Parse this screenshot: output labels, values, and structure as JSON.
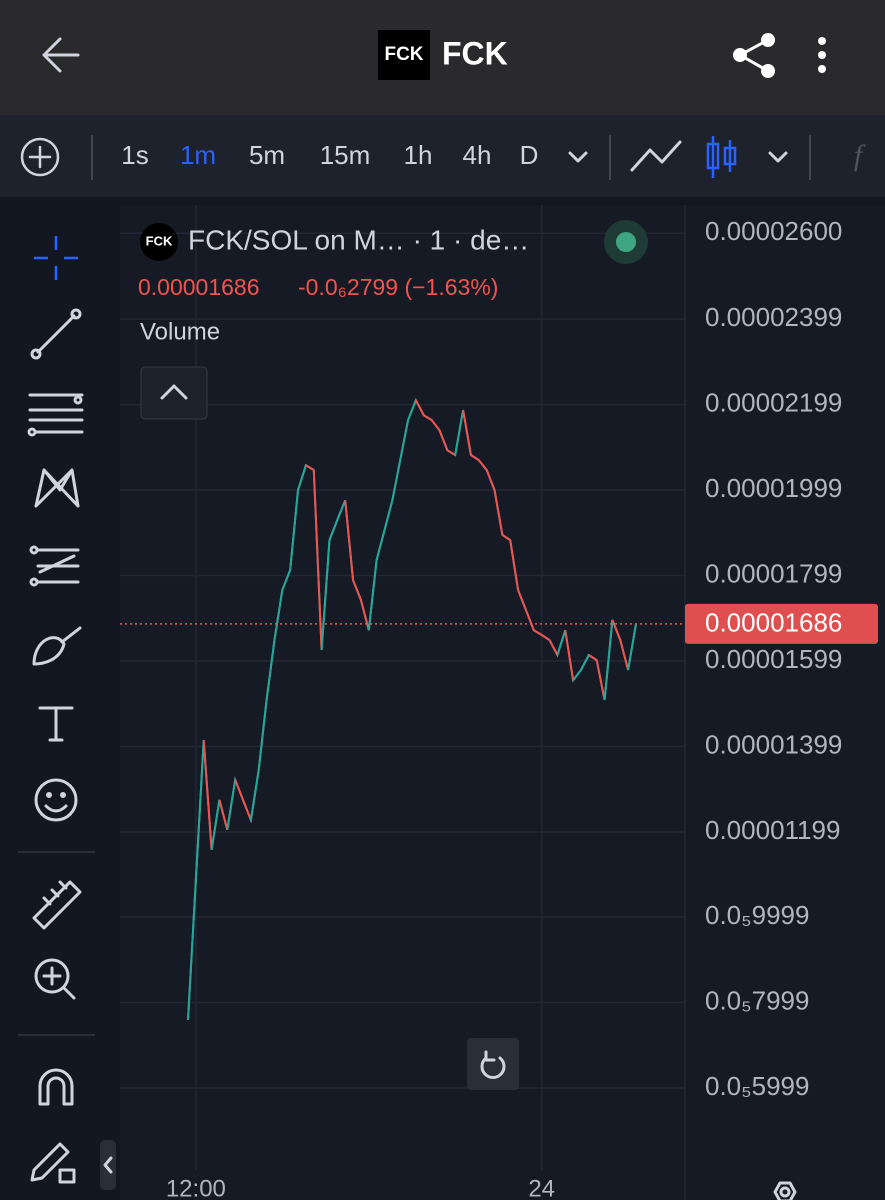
{
  "header": {
    "logo": "FCK",
    "title": "FCK"
  },
  "toolbar": {
    "timeframes": [
      "1s",
      "1m",
      "5m",
      "15m",
      "1h",
      "4h",
      "D"
    ],
    "active": 1
  },
  "legend": {
    "logo": "FCK",
    "title": "FCK/SOL on M… · 1 · de…",
    "price": "0.00001686",
    "change": "-0.0₆2799 (−1.63%)",
    "indicator": "Volume"
  },
  "chart_data": {
    "type": "line",
    "color": "#4fa39a",
    "up_color": "#26a69a",
    "down_color": "#ef5350",
    "categories": [
      null,
      "12:00",
      null,
      null,
      null,
      null,
      null,
      null,
      null,
      null,
      null,
      null,
      null,
      null,
      null,
      null,
      null,
      null,
      null,
      null,
      null,
      null,
      null,
      null,
      null,
      null,
      null,
      null,
      null,
      null,
      null,
      null,
      null,
      null,
      null,
      null,
      null,
      null,
      null,
      null,
      null,
      null,
      null,
      null,
      null,
      "24",
      null,
      null,
      null,
      null,
      null,
      null,
      null,
      null,
      null,
      null,
      null,
      null
    ],
    "values": [
      7.59e-06,
      1.087e-05,
      1.414e-05,
      1.157e-05,
      1.274e-05,
      1.204e-05,
      1.321e-05,
      1.274e-05,
      1.227e-05,
      1.344e-05,
      1.508e-05,
      1.648e-05,
      1.765e-05,
      1.812e-05,
      1.999e-05,
      2.057e-05,
      2.046e-05,
      1.625e-05,
      1.882e-05,
      1.929e-05,
      1.975e-05,
      1.788e-05,
      1.742e-05,
      1.671e-05,
      1.835e-05,
      1.905e-05,
      1.975e-05,
      2.069e-05,
      2.163e-05,
      2.209e-05,
      2.174e-05,
      2.163e-05,
      2.139e-05,
      2.092e-05,
      2.081e-05,
      2.186e-05,
      2.081e-05,
      2.069e-05,
      2.046e-05,
      1.999e-05,
      1.894e-05,
      1.882e-05,
      1.765e-05,
      1.718e-05,
      1.671e-05,
      1.66e-05,
      1.648e-05,
      1.613e-05,
      1.671e-05,
      1.554e-05,
      1.578e-05,
      1.613e-05,
      1.601e-05,
      1.508e-05,
      1.695e-05,
      1.648e-05,
      1.578e-05,
      1.686e-05
    ],
    "last_price": {
      "value": 1.686e-05,
      "label": "0.00001686"
    },
    "ylim": [
      4.08e-06,
      2.666e-05
    ],
    "yticks": [
      {
        "value": 2.6e-05,
        "label": "0.00002600"
      },
      {
        "value": 2.399e-05,
        "label": "0.00002399"
      },
      {
        "value": 2.199e-05,
        "label": "0.00002199"
      },
      {
        "value": 1.999e-05,
        "label": "0.00001999"
      },
      {
        "value": 1.799e-05,
        "label": "0.00001799"
      },
      {
        "value": 1.599e-05,
        "label": "0.00001599"
      },
      {
        "value": 1.399e-05,
        "label": "0.00001399"
      },
      {
        "value": 1.199e-05,
        "label": "0.00001199"
      },
      {
        "value": 9.999e-06,
        "label": "0.0₅9999"
      },
      {
        "value": 7.999e-06,
        "label": "0.0₅7999"
      },
      {
        "value": 5.999e-06,
        "label": "0.0₅5999"
      }
    ],
    "grid": true
  }
}
